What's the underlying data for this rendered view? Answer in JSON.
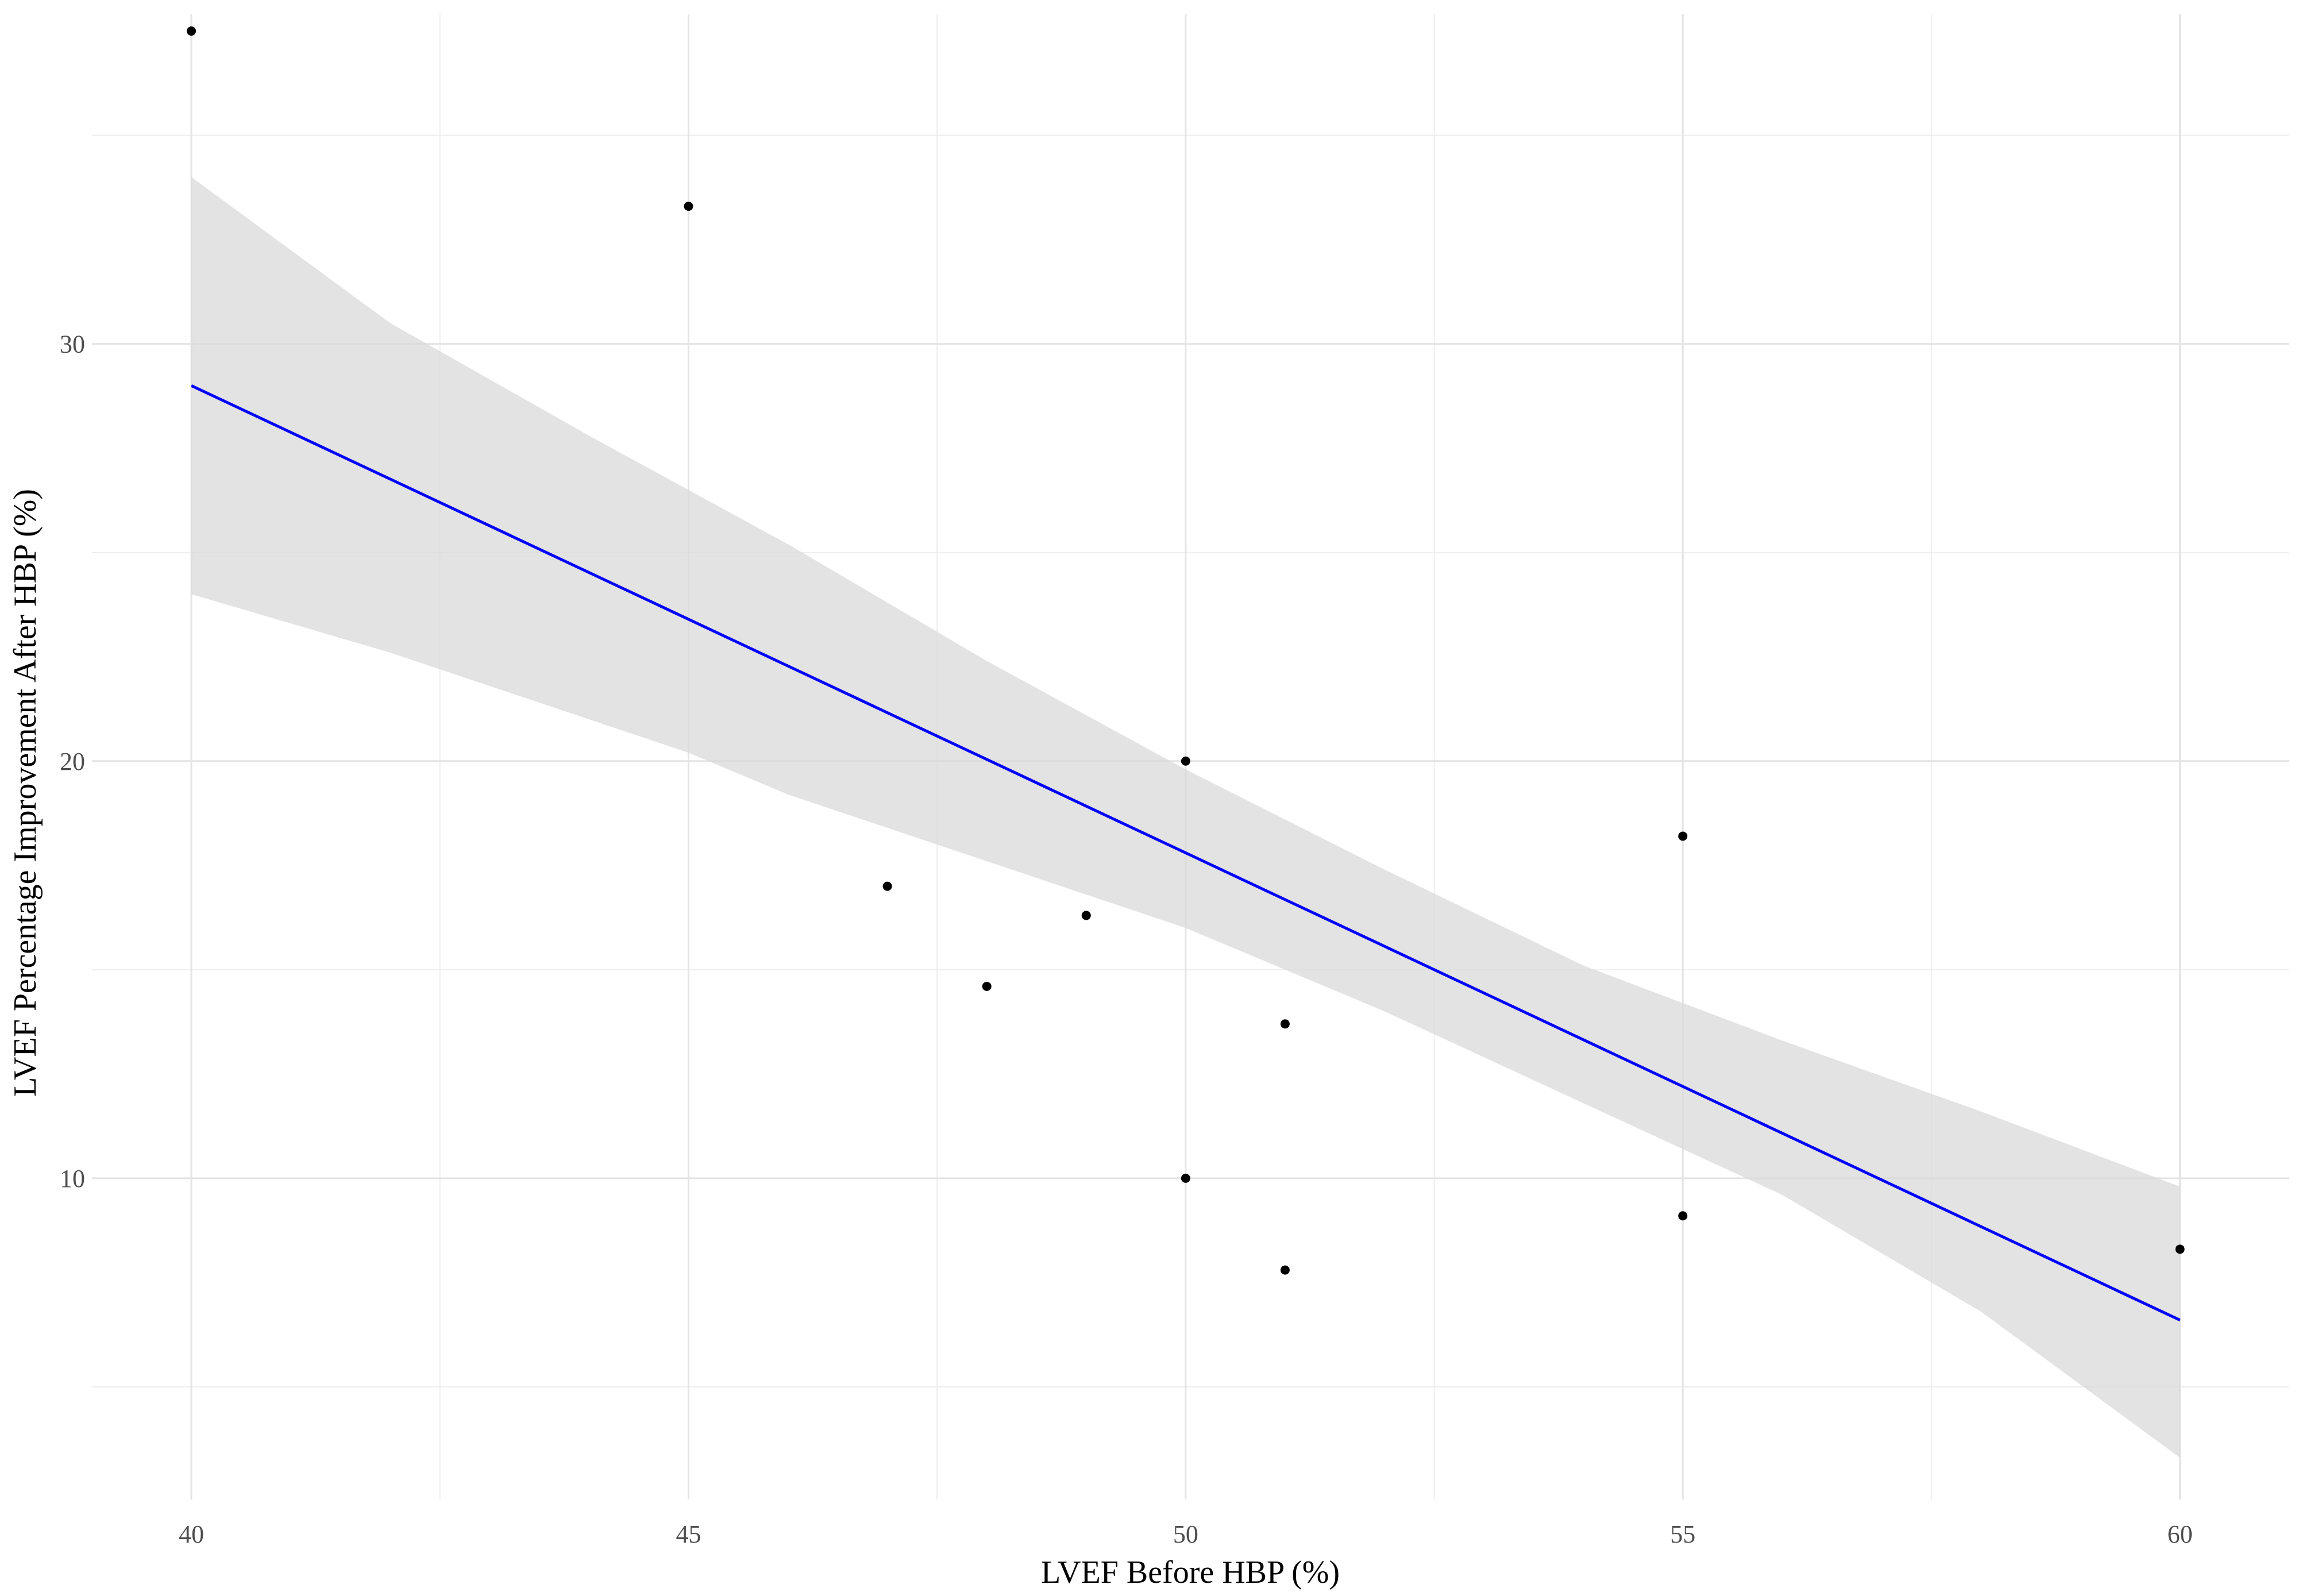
{
  "chart_data": {
    "type": "scatter",
    "title": "",
    "xlabel": "LVEF Before HBP (%)",
    "ylabel": "LVEF Percentage Improvement After HBP (%)",
    "xlim": [
      39,
      61.1
    ],
    "ylim": [
      2.3,
      37.9
    ],
    "x_ticks": [
      40,
      45,
      50,
      55,
      60
    ],
    "x_tick_labels": [
      "40",
      "45",
      "50",
      "55",
      "60"
    ],
    "y_ticks": [
      10,
      20,
      30
    ],
    "y_tick_labels": [
      "10",
      "20",
      "30"
    ],
    "grid": true,
    "legend": "none",
    "points": [
      {
        "x": 40,
        "y": 37.5
      },
      {
        "x": 45,
        "y": 33.3
      },
      {
        "x": 47,
        "y": 17.0
      },
      {
        "x": 48,
        "y": 14.6
      },
      {
        "x": 49,
        "y": 16.3
      },
      {
        "x": 50,
        "y": 20.0
      },
      {
        "x": 50,
        "y": 10.0
      },
      {
        "x": 51,
        "y": 13.7
      },
      {
        "x": 51,
        "y": 7.8
      },
      {
        "x": 55,
        "y": 18.2
      },
      {
        "x": 55,
        "y": 9.1
      },
      {
        "x": 60,
        "y": 8.3
      }
    ],
    "fit_line": {
      "x": [
        40,
        60
      ],
      "y": [
        29.0,
        6.6
      ]
    },
    "confidence_band": {
      "x": [
        40,
        42,
        44,
        45,
        46,
        48,
        50,
        52,
        54,
        56,
        58,
        60
      ],
      "lower": [
        24.0,
        22.6,
        21.0,
        20.2,
        19.2,
        17.6,
        16.0,
        14.0,
        11.8,
        9.6,
        6.8,
        3.3
      ],
      "upper": [
        34.0,
        30.5,
        27.8,
        26.5,
        25.2,
        22.4,
        19.8,
        17.4,
        15.1,
        13.3,
        11.6,
        9.8
      ]
    },
    "colors": {
      "points": "#000000",
      "fit_line": "#0000ff",
      "band": "#d9d9d9",
      "grid": "#e4e4e4",
      "tick_text": "#4d4d4d"
    }
  }
}
